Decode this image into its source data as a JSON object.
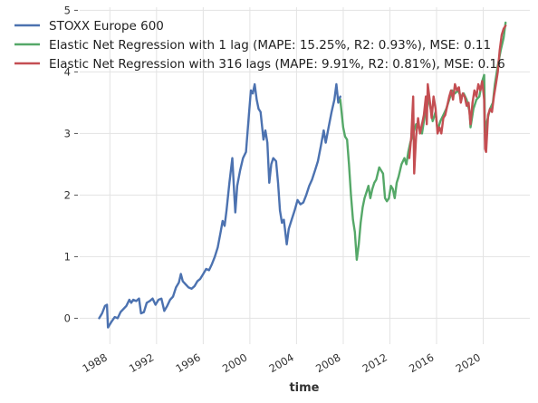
{
  "chart_data": {
    "type": "line",
    "title": "",
    "xlabel": "time",
    "ylabel": "",
    "xlim": [
      "1985-06-01",
      "2023-12-31"
    ],
    "ylim": [
      -0.42,
      5.05
    ],
    "grid": true,
    "legend_position": "top-left",
    "x_ticks": [
      {
        "date": "1988-01-01",
        "label": "1988"
      },
      {
        "date": "1992-01-01",
        "label": "1992"
      },
      {
        "date": "1996-01-01",
        "label": "1996"
      },
      {
        "date": "2000-01-01",
        "label": "2000"
      },
      {
        "date": "2004-01-01",
        "label": "2004"
      },
      {
        "date": "2008-01-01",
        "label": "2008"
      },
      {
        "date": "2012-01-01",
        "label": "2012"
      },
      {
        "date": "2016-01-01",
        "label": "2016"
      },
      {
        "date": "2020-01-01",
        "label": "2020"
      }
    ],
    "y_ticks": [
      {
        "value": 0,
        "label": "0"
      },
      {
        "value": 1,
        "label": "1"
      },
      {
        "value": 2,
        "label": "2"
      },
      {
        "value": 3,
        "label": "3"
      },
      {
        "value": 4,
        "label": "4"
      },
      {
        "value": 5,
        "label": "5"
      }
    ],
    "series": [
      {
        "name": "STOXX Europe 600",
        "color": "#4c72b0",
        "points": [
          [
            "1987-02-01",
            0.0
          ],
          [
            "1987-05-01",
            0.08
          ],
          [
            "1987-08-01",
            0.2
          ],
          [
            "1987-10-01",
            0.22
          ],
          [
            "1987-11-01",
            -0.15
          ],
          [
            "1988-03-01",
            -0.05
          ],
          [
            "1988-06-01",
            0.02
          ],
          [
            "1988-09-01",
            0.0
          ],
          [
            "1988-12-01",
            0.1
          ],
          [
            "1989-03-01",
            0.15
          ],
          [
            "1989-06-01",
            0.2
          ],
          [
            "1989-09-01",
            0.3
          ],
          [
            "1989-11-01",
            0.25
          ],
          [
            "1990-01-01",
            0.3
          ],
          [
            "1990-04-01",
            0.28
          ],
          [
            "1990-07-01",
            0.32
          ],
          [
            "1990-09-01",
            0.08
          ],
          [
            "1990-12-01",
            0.1
          ],
          [
            "1991-03-01",
            0.25
          ],
          [
            "1991-06-01",
            0.28
          ],
          [
            "1991-09-01",
            0.32
          ],
          [
            "1991-12-01",
            0.22
          ],
          [
            "1992-03-01",
            0.3
          ],
          [
            "1992-06-01",
            0.32
          ],
          [
            "1992-09-01",
            0.12
          ],
          [
            "1992-12-01",
            0.2
          ],
          [
            "1993-03-01",
            0.3
          ],
          [
            "1993-06-01",
            0.35
          ],
          [
            "1993-09-01",
            0.5
          ],
          [
            "1993-12-01",
            0.58
          ],
          [
            "1994-02-01",
            0.72
          ],
          [
            "1994-04-01",
            0.6
          ],
          [
            "1994-07-01",
            0.55
          ],
          [
            "1994-10-01",
            0.5
          ],
          [
            "1995-01-01",
            0.48
          ],
          [
            "1995-04-01",
            0.52
          ],
          [
            "1995-07-01",
            0.6
          ],
          [
            "1995-10-01",
            0.64
          ],
          [
            "1996-01-01",
            0.72
          ],
          [
            "1996-04-01",
            0.8
          ],
          [
            "1996-07-01",
            0.78
          ],
          [
            "1996-10-01",
            0.88
          ],
          [
            "1997-01-01",
            1.0
          ],
          [
            "1997-04-01",
            1.15
          ],
          [
            "1997-07-01",
            1.4
          ],
          [
            "1997-09-01",
            1.58
          ],
          [
            "1997-11-01",
            1.5
          ],
          [
            "1998-01-01",
            1.75
          ],
          [
            "1998-04-01",
            2.2
          ],
          [
            "1998-07-01",
            2.6
          ],
          [
            "1998-09-01",
            2.0
          ],
          [
            "1998-10-01",
            1.72
          ],
          [
            "1998-12-01",
            2.15
          ],
          [
            "1999-03-01",
            2.4
          ],
          [
            "1999-06-01",
            2.6
          ],
          [
            "1999-09-01",
            2.7
          ],
          [
            "1999-12-01",
            3.3
          ],
          [
            "2000-02-01",
            3.7
          ],
          [
            "2000-04-01",
            3.65
          ],
          [
            "2000-06-01",
            3.8
          ],
          [
            "2000-08-01",
            3.55
          ],
          [
            "2000-10-01",
            3.4
          ],
          [
            "2000-12-01",
            3.35
          ],
          [
            "2001-03-01",
            2.9
          ],
          [
            "2001-05-01",
            3.05
          ],
          [
            "2001-07-01",
            2.85
          ],
          [
            "2001-09-01",
            2.2
          ],
          [
            "2001-11-01",
            2.5
          ],
          [
            "2002-01-01",
            2.6
          ],
          [
            "2002-04-01",
            2.55
          ],
          [
            "2002-06-01",
            2.2
          ],
          [
            "2002-08-01",
            1.75
          ],
          [
            "2002-10-01",
            1.55
          ],
          [
            "2002-12-01",
            1.6
          ],
          [
            "2003-03-01",
            1.2
          ],
          [
            "2003-05-01",
            1.45
          ],
          [
            "2003-08-01",
            1.6
          ],
          [
            "2003-11-01",
            1.75
          ],
          [
            "2004-02-01",
            1.92
          ],
          [
            "2004-05-01",
            1.85
          ],
          [
            "2004-08-01",
            1.88
          ],
          [
            "2004-11-01",
            2.0
          ],
          [
            "2005-02-01",
            2.15
          ],
          [
            "2005-05-01",
            2.25
          ],
          [
            "2005-08-01",
            2.4
          ],
          [
            "2005-11-01",
            2.55
          ],
          [
            "2006-02-01",
            2.8
          ],
          [
            "2006-05-01",
            3.05
          ],
          [
            "2006-07-01",
            2.85
          ],
          [
            "2006-10-01",
            3.1
          ],
          [
            "2007-01-01",
            3.35
          ],
          [
            "2007-04-01",
            3.55
          ],
          [
            "2007-06-01",
            3.8
          ],
          [
            "2007-08-01",
            3.5
          ],
          [
            "2007-10-01",
            3.6
          ]
        ]
      },
      {
        "name": "Elastic Net Regression with 1 lag (MAPE: 15.25%, R2: 0.93%), MSE: 0.11",
        "color": "#55a868",
        "points": [
          [
            "2007-10-01",
            3.55
          ],
          [
            "2008-01-01",
            3.1
          ],
          [
            "2008-03-01",
            2.95
          ],
          [
            "2008-05-01",
            2.9
          ],
          [
            "2008-07-01",
            2.5
          ],
          [
            "2008-09-01",
            2.0
          ],
          [
            "2008-11-01",
            1.6
          ],
          [
            "2009-01-01",
            1.4
          ],
          [
            "2009-03-01",
            0.95
          ],
          [
            "2009-05-01",
            1.2
          ],
          [
            "2009-07-01",
            1.55
          ],
          [
            "2009-09-01",
            1.8
          ],
          [
            "2009-11-01",
            1.95
          ],
          [
            "2010-01-01",
            2.05
          ],
          [
            "2010-03-01",
            2.15
          ],
          [
            "2010-05-01",
            1.95
          ],
          [
            "2010-07-01",
            2.1
          ],
          [
            "2010-09-01",
            2.2
          ],
          [
            "2010-11-01",
            2.25
          ],
          [
            "2011-02-01",
            2.45
          ],
          [
            "2011-04-01",
            2.4
          ],
          [
            "2011-06-01",
            2.35
          ],
          [
            "2011-08-01",
            1.95
          ],
          [
            "2011-10-01",
            1.9
          ],
          [
            "2011-12-01",
            1.95
          ],
          [
            "2012-02-01",
            2.15
          ],
          [
            "2012-04-01",
            2.1
          ],
          [
            "2012-06-01",
            1.95
          ],
          [
            "2012-08-01",
            2.2
          ],
          [
            "2012-10-01",
            2.3
          ],
          [
            "2013-01-01",
            2.5
          ],
          [
            "2013-04-01",
            2.6
          ],
          [
            "2013-06-01",
            2.5
          ],
          [
            "2013-08-01",
            2.7
          ],
          [
            "2013-10-01",
            2.85
          ],
          [
            "2014-01-01",
            3.0
          ],
          [
            "2014-04-01",
            3.15
          ],
          [
            "2014-07-01",
            3.1
          ],
          [
            "2014-10-01",
            3.0
          ],
          [
            "2015-01-01",
            3.3
          ],
          [
            "2015-04-01",
            3.6
          ],
          [
            "2015-07-01",
            3.4
          ],
          [
            "2015-09-01",
            3.2
          ],
          [
            "2015-12-01",
            3.35
          ],
          [
            "2016-02-01",
            3.05
          ],
          [
            "2016-05-01",
            3.2
          ],
          [
            "2016-08-01",
            3.3
          ],
          [
            "2016-11-01",
            3.4
          ],
          [
            "2017-02-01",
            3.55
          ],
          [
            "2017-05-01",
            3.7
          ],
          [
            "2017-08-01",
            3.65
          ],
          [
            "2017-11-01",
            3.7
          ],
          [
            "2018-02-01",
            3.6
          ],
          [
            "2018-05-01",
            3.65
          ],
          [
            "2018-08-01",
            3.55
          ],
          [
            "2018-11-01",
            3.35
          ],
          [
            "2018-12-01",
            3.1
          ],
          [
            "2019-03-01",
            3.4
          ],
          [
            "2019-06-01",
            3.55
          ],
          [
            "2019-09-01",
            3.6
          ],
          [
            "2019-12-01",
            3.85
          ],
          [
            "2020-02-01",
            3.95
          ],
          [
            "2020-03-01",
            2.9
          ],
          [
            "2020-05-01",
            3.2
          ],
          [
            "2020-08-01",
            3.4
          ],
          [
            "2020-11-01",
            3.5
          ],
          [
            "2021-01-01",
            3.8
          ],
          [
            "2021-04-01",
            4.1
          ],
          [
            "2021-07-01",
            4.35
          ],
          [
            "2021-10-01",
            4.55
          ],
          [
            "2021-12-01",
            4.8
          ]
        ]
      },
      {
        "name": "Elastic Net Regression with 316 lags (MAPE: 9.91%, R2: 0.81%), MSE: 0.16",
        "color": "#c44e52",
        "points": [
          [
            "2013-09-01",
            2.6
          ],
          [
            "2013-11-01",
            2.95
          ],
          [
            "2014-01-01",
            3.6
          ],
          [
            "2014-02-01",
            2.35
          ],
          [
            "2014-04-01",
            2.95
          ],
          [
            "2014-06-01",
            3.25
          ],
          [
            "2014-08-01",
            3.0
          ],
          [
            "2014-10-01",
            3.15
          ],
          [
            "2014-12-01",
            3.3
          ],
          [
            "2015-02-01",
            3.6
          ],
          [
            "2015-03-01",
            3.15
          ],
          [
            "2015-04-01",
            3.8
          ],
          [
            "2015-06-01",
            3.55
          ],
          [
            "2015-08-01",
            3.25
          ],
          [
            "2015-10-01",
            3.6
          ],
          [
            "2015-12-01",
            3.4
          ],
          [
            "2016-02-01",
            3.0
          ],
          [
            "2016-04-01",
            3.1
          ],
          [
            "2016-06-01",
            3.0
          ],
          [
            "2016-08-01",
            3.25
          ],
          [
            "2016-10-01",
            3.3
          ],
          [
            "2016-12-01",
            3.45
          ],
          [
            "2017-02-01",
            3.6
          ],
          [
            "2017-04-01",
            3.7
          ],
          [
            "2017-06-01",
            3.55
          ],
          [
            "2017-08-01",
            3.8
          ],
          [
            "2017-10-01",
            3.7
          ],
          [
            "2017-12-01",
            3.75
          ],
          [
            "2018-02-01",
            3.5
          ],
          [
            "2018-04-01",
            3.65
          ],
          [
            "2018-06-01",
            3.6
          ],
          [
            "2018-08-01",
            3.45
          ],
          [
            "2018-10-01",
            3.5
          ],
          [
            "2018-12-01",
            3.15
          ],
          [
            "2019-02-01",
            3.5
          ],
          [
            "2019-04-01",
            3.7
          ],
          [
            "2019-06-01",
            3.6
          ],
          [
            "2019-08-01",
            3.8
          ],
          [
            "2019-10-01",
            3.7
          ],
          [
            "2019-12-01",
            3.85
          ],
          [
            "2020-02-01",
            3.55
          ],
          [
            "2020-03-01",
            2.75
          ],
          [
            "2020-04-01",
            2.7
          ],
          [
            "2020-06-01",
            3.3
          ],
          [
            "2020-08-01",
            3.4
          ],
          [
            "2020-10-01",
            3.35
          ],
          [
            "2020-12-01",
            3.6
          ],
          [
            "2021-02-01",
            3.8
          ],
          [
            "2021-04-01",
            4.0
          ],
          [
            "2021-06-01",
            4.35
          ],
          [
            "2021-08-01",
            4.6
          ],
          [
            "2021-10-01",
            4.7
          ],
          [
            "2021-12-01",
            4.75
          ]
        ]
      }
    ]
  }
}
